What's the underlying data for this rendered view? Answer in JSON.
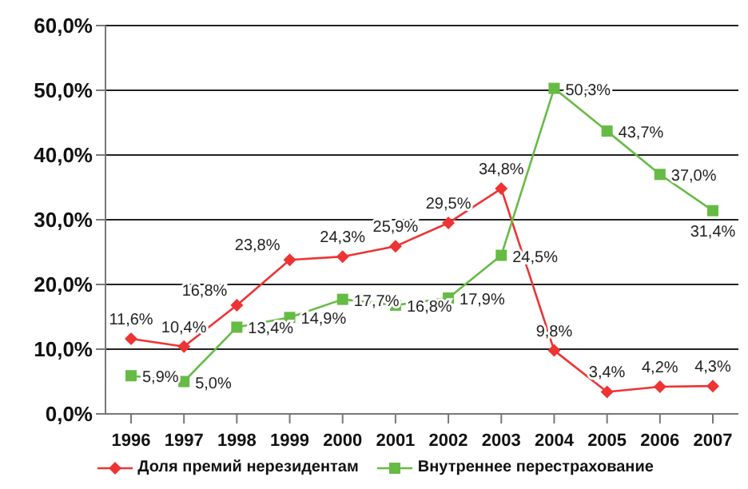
{
  "chart_data": {
    "type": "line",
    "categories": [
      "1996",
      "1997",
      "1998",
      "1999",
      "2000",
      "2001",
      "2002",
      "2003",
      "2004",
      "2005",
      "2006",
      "2007"
    ],
    "series": [
      {
        "name": "Доля премий нерезидентам",
        "color": "#ee3333",
        "marker": "diamond",
        "values": [
          11.6,
          10.4,
          16.8,
          23.8,
          24.3,
          25.9,
          29.5,
          34.8,
          9.8,
          3.4,
          4.2,
          4.3
        ],
        "value_labels": [
          "11,6%",
          "10,4%",
          "16,8%",
          "23,8%",
          "24,3%",
          "25,9%",
          "29,5%",
          "34,8%",
          "9,8%",
          "3,4%",
          "4,2%",
          "4,3%"
        ]
      },
      {
        "name": "Внутреннее перестрахование",
        "color": "#66bb44",
        "marker": "square",
        "values": [
          5.9,
          5.0,
          13.4,
          14.9,
          17.7,
          16.8,
          17.9,
          24.5,
          50.3,
          43.7,
          37.0,
          31.4
        ],
        "value_labels": [
          "5,9%",
          "5,0%",
          "13,4%",
          "14,9%",
          "17,7%",
          "16,8%",
          "17,9%",
          "24,5%",
          "50,3%",
          "43,7%",
          "37,0%",
          "31,4%"
        ]
      }
    ],
    "ylim": [
      0,
      60
    ],
    "yticks": [
      {
        "value": 0,
        "label": "0,0%"
      },
      {
        "value": 10,
        "label": "10,0%"
      },
      {
        "value": 20,
        "label": "20,0%"
      },
      {
        "value": 30,
        "label": "30,0%"
      },
      {
        "value": 40,
        "label": "40,0%"
      },
      {
        "value": 50,
        "label": "50,0%"
      },
      {
        "value": 60,
        "label": "60,0%"
      }
    ],
    "grid": "y",
    "legend": "bottom",
    "line_style": "solid"
  }
}
